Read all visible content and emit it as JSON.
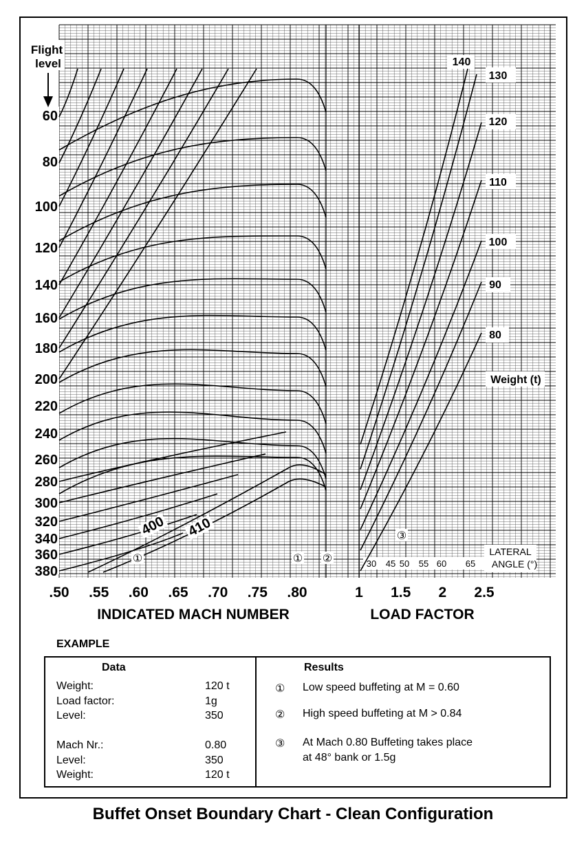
{
  "caption": "Buffet Onset Boundary Chart - Clean Configuration",
  "chart_data": {
    "type": "line",
    "title": "Buffet Onset Boundary Chart - Clean Configuration",
    "left_panel": {
      "xlabel": "INDICATED MACH NUMBER",
      "x_ticks": [
        ".50",
        ".55",
        ".60",
        ".65",
        ".70",
        ".75",
        ".80"
      ],
      "xlim": [
        0.5,
        0.85
      ],
      "ylabel": "Flight level",
      "y_ticks": [
        "60",
        "80",
        "100",
        "120",
        "140",
        "160",
        "180",
        "200",
        "220",
        "240",
        "260",
        "280",
        "300",
        "320",
        "340",
        "360",
        "380"
      ],
      "flight_level_lines": [
        {
          "fl": 60,
          "pk": 115
        },
        {
          "fl": 80,
          "pk": 200
        },
        {
          "fl": 100,
          "pk": 268
        },
        {
          "fl": 120,
          "pk": 343
        },
        {
          "fl": 140,
          "pk": 406
        },
        {
          "fl": 160,
          "pk": 461
        },
        {
          "fl": 180,
          "pk": 514
        },
        {
          "fl": 200,
          "pk": 568
        },
        {
          "fl": 220,
          "pk": 611
        },
        {
          "fl": 240,
          "pk": 648
        },
        {
          "fl": 260,
          "pk": 665
        },
        {
          "fl": 280,
          "pk": 0
        },
        {
          "fl": 300,
          "pk": 0
        },
        {
          "fl": 320,
          "pk": 0
        },
        {
          "fl": 340,
          "pk": 0
        },
        {
          "fl": 360,
          "pk": 0
        },
        {
          "fl": 380,
          "pk": 0
        }
      ],
      "curve_labels": [
        {
          "text": "400"
        },
        {
          "text": "410"
        }
      ]
    },
    "right_panel": {
      "xlabel": "LOAD FACTOR",
      "x_ticks": [
        "1",
        "1.5",
        "2",
        "2.5"
      ],
      "xlim": [
        1.0,
        2.5
      ],
      "weight_title": "Weight (t)",
      "weight_labels": [
        "140",
        "130",
        "120",
        "110",
        "100",
        "90",
        "80"
      ],
      "lateral_angle_title": [
        "LATERAL",
        "ANGLE (°)"
      ],
      "lateral_angle_labels": [
        "30",
        "45",
        "50",
        "55",
        "60",
        "65"
      ]
    },
    "markers": [
      {
        "symbol": "①",
        "at": "M 0.60 low speed"
      },
      {
        "symbol": "①",
        "at": "M 0.80"
      },
      {
        "symbol": "②",
        "at": "M 0.84"
      },
      {
        "symbol": "③",
        "at": "load factor 1.5"
      }
    ]
  },
  "example": {
    "title": "EXAMPLE",
    "data_header": "Data",
    "results_header": "Results",
    "data_rows": [
      {
        "label": "Weight:",
        "value": "120 t"
      },
      {
        "label": "Load factor:",
        "value": "1g"
      },
      {
        "label": "Level:",
        "value": "350"
      },
      {
        "label": "Mach Nr.:",
        "value": "0.80"
      },
      {
        "label": "Level:",
        "value": "350"
      },
      {
        "label": "Weight:",
        "value": "120 t"
      }
    ],
    "results": [
      {
        "symbol": "①",
        "lines": [
          "Low speed buffeting at M = 0.60"
        ]
      },
      {
        "symbol": "②",
        "lines": [
          "High speed buffeting at M > 0.84"
        ]
      },
      {
        "symbol": "③",
        "lines": [
          "At Mach 0.80 Buffeting takes place",
          "at 48° bank or 1.5g"
        ]
      }
    ]
  }
}
